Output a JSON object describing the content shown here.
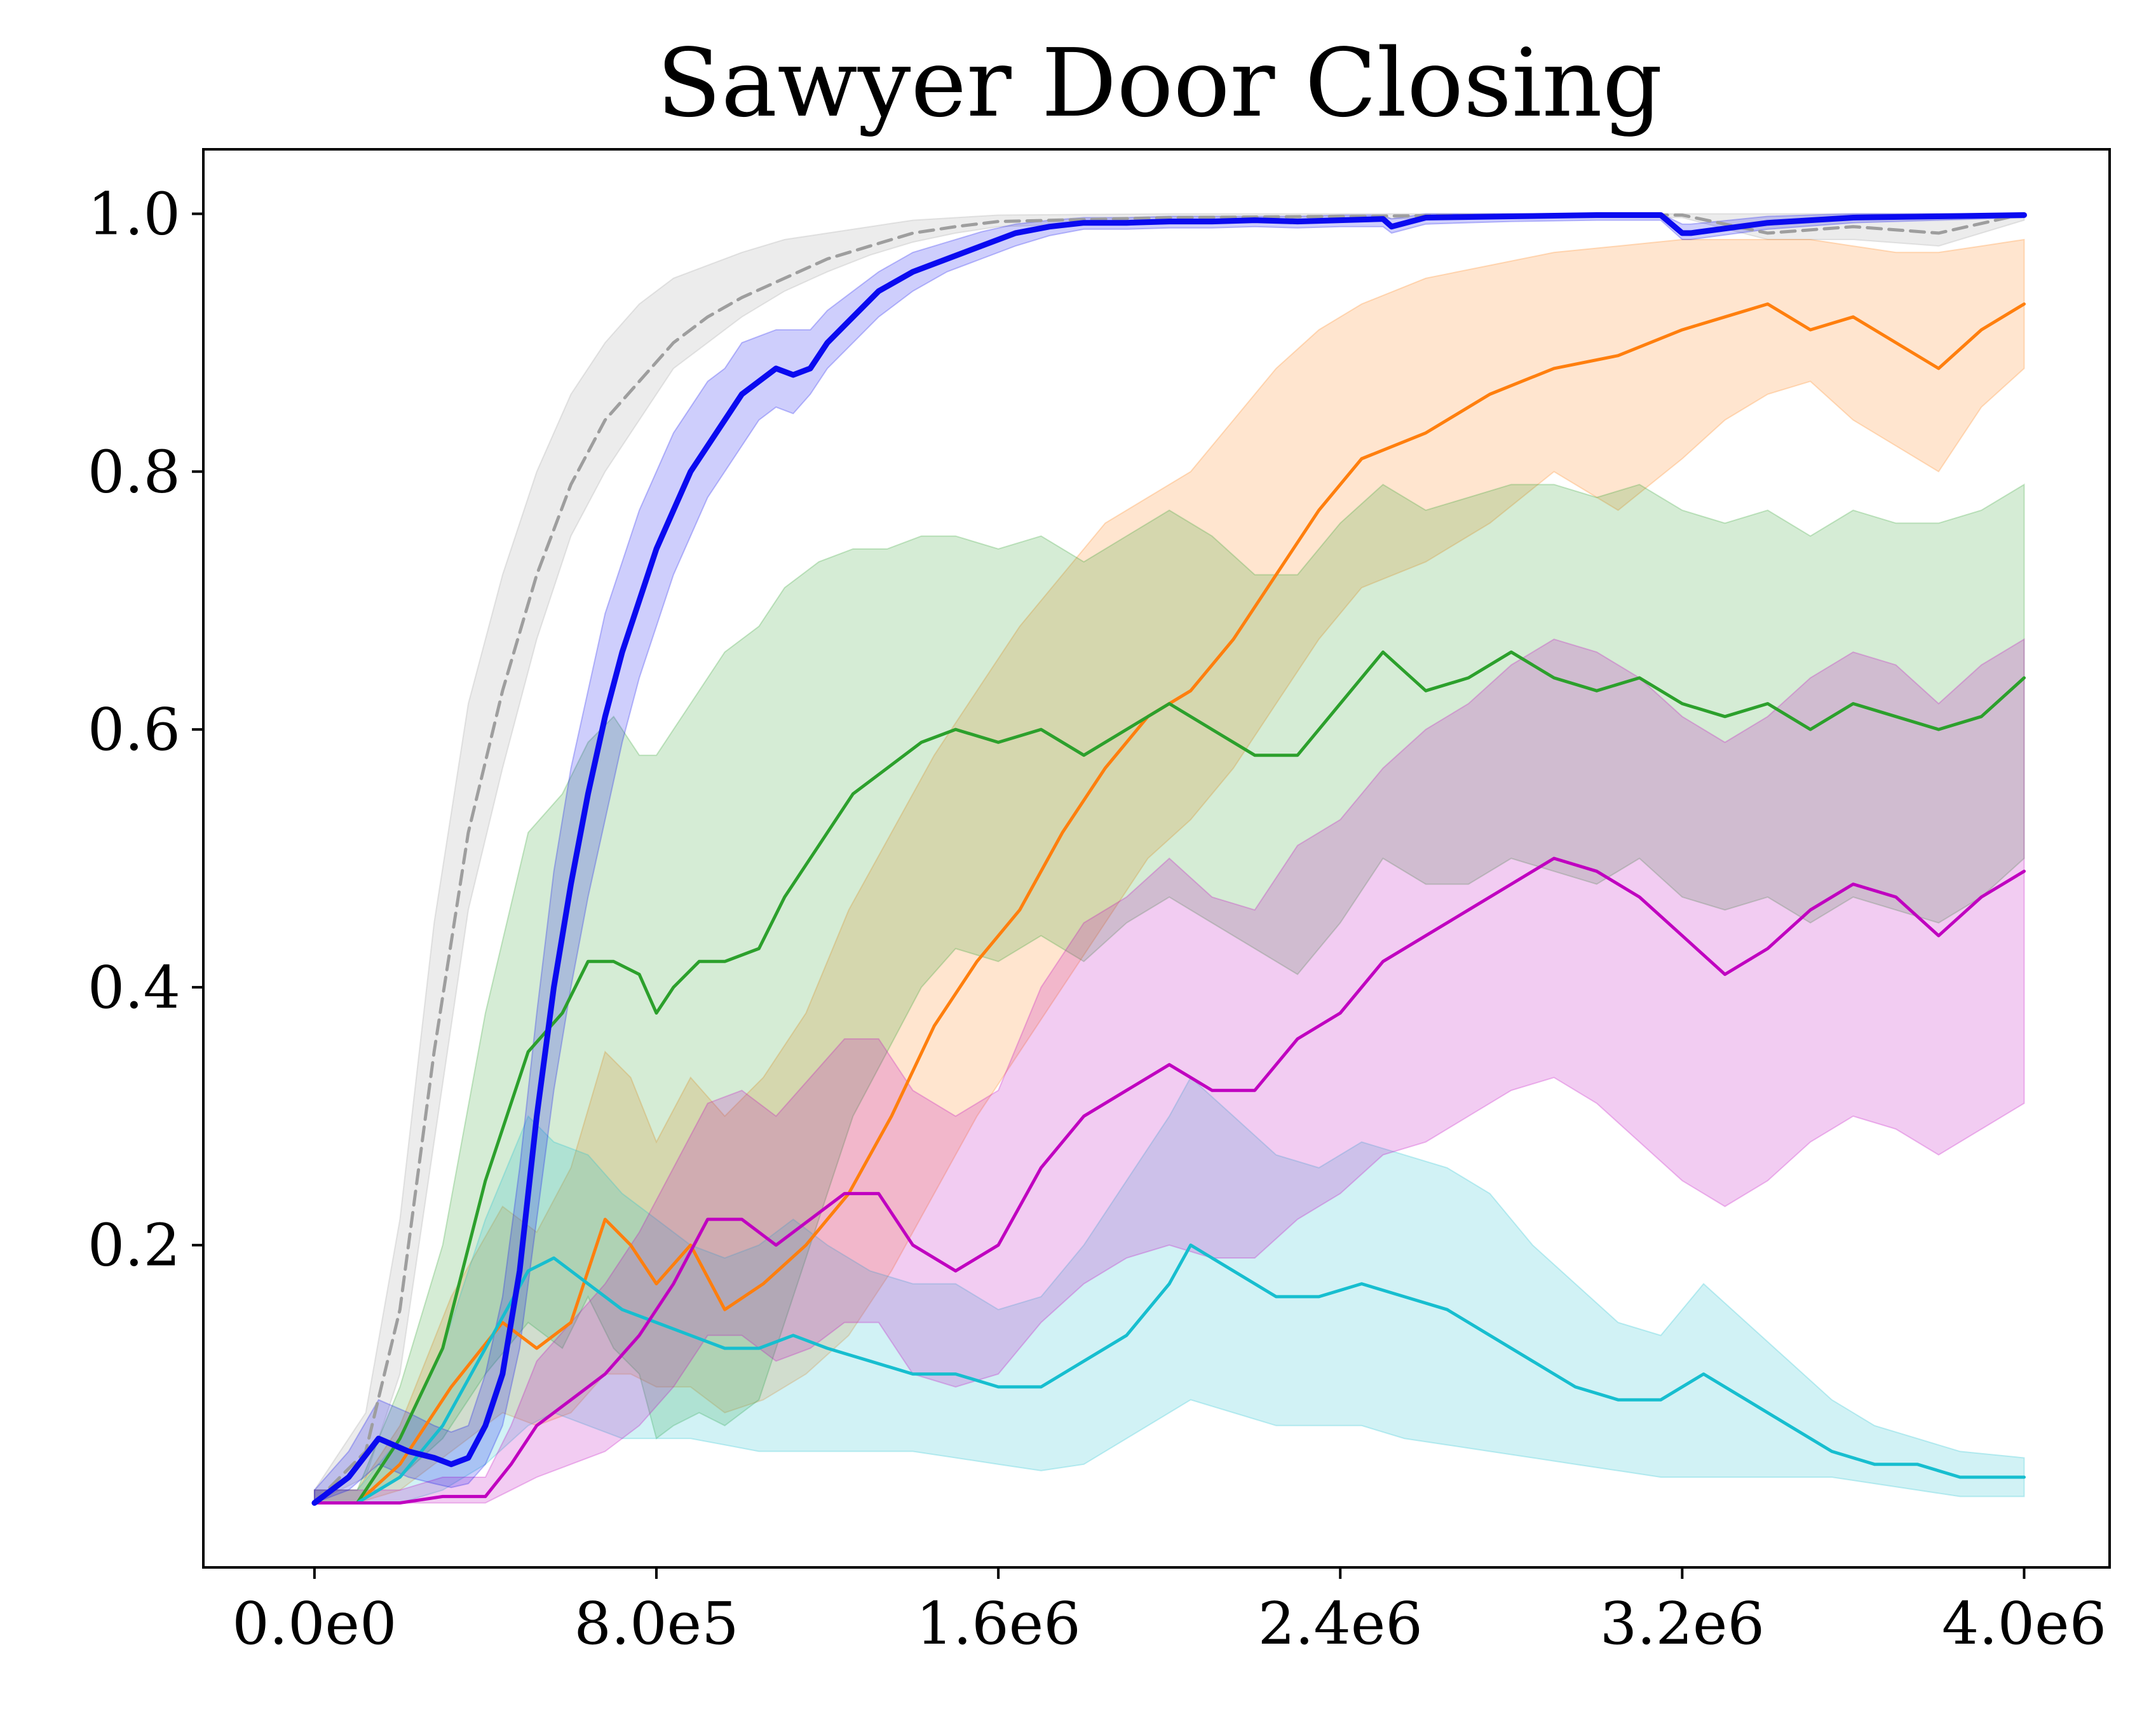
{
  "chart_data": {
    "type": "line",
    "title": "Sawyer Door Closing",
    "xlabel": "",
    "ylabel": "",
    "xlim": [
      -260000,
      4200000
    ],
    "ylim": [
      -0.05,
      1.05
    ],
    "xticks": [
      0,
      800000,
      1600000,
      2400000,
      3200000,
      4000000
    ],
    "xtick_labels": [
      "0.0e0",
      "8.0e5",
      "1.6e6",
      "2.4e6",
      "3.2e6",
      "4.0e6"
    ],
    "yticks": [
      0.2,
      0.4,
      0.6,
      0.8,
      1.0
    ],
    "ytick_labels": [
      "0.2",
      "0.4",
      "0.6",
      "0.8",
      "1.0"
    ],
    "grid": false,
    "legend": "none",
    "series": [
      {
        "color": "#9e9e9e",
        "dashed": true,
        "linewidth": 5,
        "x": [
          0,
          120000,
          200000,
          280000,
          360000,
          440000,
          520000,
          600000,
          680000,
          760000,
          840000,
          920000,
          1000000,
          1100000,
          1200000,
          1300000,
          1400000,
          1500000,
          1600000,
          2000000,
          2400000,
          2800000,
          3200000,
          3400000,
          3600000,
          3800000,
          4000000
        ],
        "y": [
          0.0,
          0.04,
          0.15,
          0.35,
          0.52,
          0.63,
          0.72,
          0.79,
          0.84,
          0.87,
          0.9,
          0.92,
          0.935,
          0.95,
          0.965,
          0.975,
          0.985,
          0.99,
          0.994,
          0.997,
          0.998,
          0.999,
          0.999,
          0.985,
          0.99,
          0.985,
          1.0
        ],
        "lower": [
          0.0,
          0.02,
          0.1,
          0.28,
          0.46,
          0.57,
          0.67,
          0.75,
          0.8,
          0.84,
          0.88,
          0.9,
          0.92,
          0.94,
          0.955,
          0.968,
          0.978,
          0.985,
          0.99,
          0.994,
          0.996,
          0.997,
          0.997,
          0.98,
          0.98,
          0.975,
          0.995
        ],
        "upper": [
          0.01,
          0.07,
          0.22,
          0.45,
          0.62,
          0.72,
          0.8,
          0.86,
          0.9,
          0.93,
          0.95,
          0.96,
          0.97,
          0.98,
          0.985,
          0.99,
          0.995,
          0.997,
          0.999,
          1.0,
          1.0,
          1.0,
          1.0,
          1.0,
          1.0,
          1.0,
          1.0
        ]
      },
      {
        "color": "#ff7f0e",
        "dashed": false,
        "linewidth": 5,
        "x": [
          0,
          100000,
          200000,
          320000,
          440000,
          520000,
          600000,
          680000,
          740000,
          800000,
          880000,
          960000,
          1050000,
          1150000,
          1250000,
          1350000,
          1450000,
          1550000,
          1650000,
          1750000,
          1850000,
          1950000,
          2050000,
          2150000,
          2250000,
          2350000,
          2450000,
          2600000,
          2750000,
          2900000,
          3050000,
          3200000,
          3300000,
          3400000,
          3500000,
          3600000,
          3700000,
          3800000,
          3900000,
          4000000
        ],
        "y": [
          0.0,
          0.0,
          0.03,
          0.09,
          0.14,
          0.12,
          0.14,
          0.22,
          0.2,
          0.17,
          0.2,
          0.15,
          0.17,
          0.2,
          0.24,
          0.3,
          0.37,
          0.42,
          0.46,
          0.52,
          0.57,
          0.61,
          0.63,
          0.67,
          0.72,
          0.77,
          0.81,
          0.83,
          0.86,
          0.88,
          0.89,
          0.91,
          0.92,
          0.93,
          0.91,
          0.92,
          0.9,
          0.88,
          0.91,
          0.93
        ],
        "lower": [
          0.0,
          0.0,
          0.01,
          0.04,
          0.07,
          0.06,
          0.07,
          0.1,
          0.1,
          0.09,
          0.09,
          0.07,
          0.08,
          0.1,
          0.13,
          0.18,
          0.24,
          0.3,
          0.35,
          0.4,
          0.45,
          0.5,
          0.53,
          0.57,
          0.62,
          0.67,
          0.71,
          0.73,
          0.76,
          0.8,
          0.77,
          0.81,
          0.84,
          0.86,
          0.87,
          0.84,
          0.82,
          0.8,
          0.85,
          0.88
        ],
        "upper": [
          0.01,
          0.01,
          0.06,
          0.16,
          0.23,
          0.21,
          0.26,
          0.35,
          0.33,
          0.28,
          0.33,
          0.3,
          0.33,
          0.38,
          0.46,
          0.52,
          0.58,
          0.63,
          0.68,
          0.72,
          0.76,
          0.78,
          0.8,
          0.84,
          0.88,
          0.91,
          0.93,
          0.95,
          0.96,
          0.97,
          0.975,
          0.98,
          0.98,
          0.98,
          0.98,
          0.975,
          0.97,
          0.97,
          0.975,
          0.98
        ]
      },
      {
        "color": "#2ca02c",
        "dashed": false,
        "linewidth": 5,
        "x": [
          0,
          100000,
          200000,
          300000,
          400000,
          500000,
          580000,
          640000,
          700000,
          760000,
          800000,
          840000,
          900000,
          960000,
          1040000,
          1100000,
          1180000,
          1260000,
          1340000,
          1420000,
          1500000,
          1600000,
          1700000,
          1800000,
          1900000,
          2000000,
          2100000,
          2200000,
          2300000,
          2400000,
          2500000,
          2600000,
          2700000,
          2800000,
          2900000,
          3000000,
          3100000,
          3200000,
          3300000,
          3400000,
          3500000,
          3600000,
          3700000,
          3800000,
          3900000,
          4000000
        ],
        "y": [
          0.0,
          0.0,
          0.05,
          0.12,
          0.25,
          0.35,
          0.38,
          0.42,
          0.42,
          0.41,
          0.38,
          0.4,
          0.42,
          0.42,
          0.43,
          0.47,
          0.51,
          0.55,
          0.57,
          0.59,
          0.6,
          0.59,
          0.6,
          0.58,
          0.6,
          0.62,
          0.6,
          0.58,
          0.58,
          0.62,
          0.66,
          0.63,
          0.64,
          0.66,
          0.64,
          0.63,
          0.64,
          0.62,
          0.61,
          0.62,
          0.6,
          0.62,
          0.61,
          0.6,
          0.61,
          0.64
        ],
        "lower": [
          0.0,
          0.0,
          0.02,
          0.05,
          0.1,
          0.14,
          0.12,
          0.16,
          0.12,
          0.1,
          0.05,
          0.06,
          0.07,
          0.06,
          0.08,
          0.14,
          0.22,
          0.3,
          0.35,
          0.4,
          0.43,
          0.42,
          0.44,
          0.42,
          0.45,
          0.47,
          0.45,
          0.43,
          0.41,
          0.45,
          0.5,
          0.48,
          0.48,
          0.5,
          0.49,
          0.48,
          0.5,
          0.47,
          0.46,
          0.47,
          0.45,
          0.47,
          0.46,
          0.45,
          0.47,
          0.5
        ],
        "upper": [
          0.01,
          0.01,
          0.09,
          0.2,
          0.38,
          0.52,
          0.55,
          0.59,
          0.61,
          0.58,
          0.58,
          0.6,
          0.63,
          0.66,
          0.68,
          0.71,
          0.73,
          0.74,
          0.74,
          0.75,
          0.75,
          0.74,
          0.75,
          0.73,
          0.75,
          0.77,
          0.75,
          0.72,
          0.72,
          0.76,
          0.79,
          0.77,
          0.78,
          0.79,
          0.79,
          0.78,
          0.79,
          0.77,
          0.76,
          0.77,
          0.75,
          0.77,
          0.76,
          0.76,
          0.77,
          0.79
        ]
      },
      {
        "color": "#17becf",
        "dashed": false,
        "linewidth": 5,
        "x": [
          0,
          100000,
          200000,
          300000,
          400000,
          500000,
          560000,
          640000,
          720000,
          800000,
          880000,
          960000,
          1040000,
          1120000,
          1200000,
          1300000,
          1400000,
          1500000,
          1600000,
          1700000,
          1800000,
          1900000,
          2000000,
          2050000,
          2150000,
          2250000,
          2350000,
          2450000,
          2550000,
          2650000,
          2750000,
          2850000,
          2950000,
          3050000,
          3150000,
          3250000,
          3350000,
          3450000,
          3550000,
          3650000,
          3750000,
          3850000,
          4000000
        ],
        "y": [
          0.0,
          0.0,
          0.02,
          0.06,
          0.12,
          0.18,
          0.19,
          0.17,
          0.15,
          0.14,
          0.13,
          0.12,
          0.12,
          0.13,
          0.12,
          0.11,
          0.1,
          0.1,
          0.09,
          0.09,
          0.11,
          0.13,
          0.17,
          0.2,
          0.18,
          0.16,
          0.16,
          0.17,
          0.16,
          0.15,
          0.13,
          0.11,
          0.09,
          0.08,
          0.08,
          0.1,
          0.08,
          0.06,
          0.04,
          0.03,
          0.03,
          0.02,
          0.02
        ],
        "lower": [
          0.0,
          0.0,
          0.0,
          0.01,
          0.03,
          0.06,
          0.07,
          0.06,
          0.05,
          0.05,
          0.05,
          0.045,
          0.04,
          0.04,
          0.04,
          0.04,
          0.04,
          0.035,
          0.03,
          0.025,
          0.03,
          0.05,
          0.07,
          0.08,
          0.07,
          0.06,
          0.06,
          0.06,
          0.05,
          0.045,
          0.04,
          0.035,
          0.03,
          0.025,
          0.02,
          0.02,
          0.02,
          0.02,
          0.02,
          0.015,
          0.01,
          0.005,
          0.005
        ],
        "upper": [
          0.01,
          0.01,
          0.05,
          0.12,
          0.22,
          0.3,
          0.28,
          0.27,
          0.24,
          0.22,
          0.2,
          0.19,
          0.2,
          0.22,
          0.2,
          0.18,
          0.17,
          0.17,
          0.15,
          0.16,
          0.2,
          0.25,
          0.3,
          0.33,
          0.3,
          0.27,
          0.26,
          0.28,
          0.27,
          0.26,
          0.24,
          0.2,
          0.17,
          0.14,
          0.13,
          0.17,
          0.14,
          0.11,
          0.08,
          0.06,
          0.05,
          0.04,
          0.035
        ]
      },
      {
        "color": "#c000c0",
        "dashed": false,
        "linewidth": 5,
        "x": [
          0,
          100000,
          200000,
          300000,
          400000,
          460000,
          520000,
          600000,
          680000,
          760000,
          840000,
          920000,
          1000000,
          1080000,
          1160000,
          1240000,
          1320000,
          1400000,
          1500000,
          1600000,
          1700000,
          1800000,
          1900000,
          2000000,
          2100000,
          2200000,
          2300000,
          2400000,
          2500000,
          2600000,
          2700000,
          2800000,
          2900000,
          3000000,
          3100000,
          3200000,
          3300000,
          3400000,
          3500000,
          3600000,
          3700000,
          3800000,
          3900000,
          4000000
        ],
        "y": [
          0.0,
          0.0,
          0.0,
          0.005,
          0.005,
          0.03,
          0.06,
          0.08,
          0.1,
          0.13,
          0.17,
          0.22,
          0.22,
          0.2,
          0.22,
          0.24,
          0.24,
          0.2,
          0.18,
          0.2,
          0.26,
          0.3,
          0.32,
          0.34,
          0.32,
          0.32,
          0.36,
          0.38,
          0.42,
          0.44,
          0.46,
          0.48,
          0.5,
          0.49,
          0.47,
          0.44,
          0.41,
          0.43,
          0.46,
          0.48,
          0.47,
          0.44,
          0.47,
          0.49
        ],
        "lower": [
          0.0,
          0.0,
          0.0,
          0.0,
          0.0,
          0.01,
          0.02,
          0.03,
          0.04,
          0.06,
          0.09,
          0.13,
          0.13,
          0.11,
          0.12,
          0.14,
          0.14,
          0.1,
          0.09,
          0.1,
          0.14,
          0.17,
          0.19,
          0.2,
          0.19,
          0.19,
          0.22,
          0.24,
          0.27,
          0.28,
          0.3,
          0.32,
          0.33,
          0.31,
          0.28,
          0.25,
          0.23,
          0.25,
          0.28,
          0.3,
          0.29,
          0.27,
          0.29,
          0.31
        ],
        "upper": [
          0.01,
          0.01,
          0.01,
          0.02,
          0.02,
          0.06,
          0.11,
          0.14,
          0.17,
          0.21,
          0.26,
          0.31,
          0.32,
          0.3,
          0.33,
          0.36,
          0.36,
          0.32,
          0.3,
          0.32,
          0.4,
          0.45,
          0.47,
          0.5,
          0.47,
          0.46,
          0.51,
          0.53,
          0.57,
          0.6,
          0.62,
          0.65,
          0.67,
          0.66,
          0.64,
          0.61,
          0.59,
          0.61,
          0.64,
          0.66,
          0.65,
          0.62,
          0.65,
          0.67
        ]
      },
      {
        "color": "#0a0af0",
        "dashed": false,
        "linewidth": 9,
        "x": [
          0,
          80000,
          150000,
          220000,
          280000,
          320000,
          360000,
          400000,
          440000,
          480000,
          520000,
          560000,
          600000,
          640000,
          680000,
          720000,
          760000,
          800000,
          840000,
          880000,
          920000,
          960000,
          1000000,
          1040000,
          1080000,
          1120000,
          1160000,
          1200000,
          1260000,
          1320000,
          1400000,
          1480000,
          1560000,
          1640000,
          1720000,
          1800000,
          1900000,
          2000000,
          2100000,
          2200000,
          2300000,
          2400000,
          2500000,
          2520000,
          2600000,
          2800000,
          3000000,
          3150000,
          3200000,
          3220000,
          3400000,
          3600000,
          3800000,
          4000000
        ],
        "y": [
          0.0,
          0.02,
          0.05,
          0.04,
          0.035,
          0.03,
          0.035,
          0.06,
          0.1,
          0.18,
          0.3,
          0.4,
          0.48,
          0.55,
          0.61,
          0.66,
          0.7,
          0.74,
          0.77,
          0.8,
          0.82,
          0.84,
          0.86,
          0.87,
          0.88,
          0.875,
          0.88,
          0.9,
          0.92,
          0.94,
          0.955,
          0.965,
          0.975,
          0.985,
          0.99,
          0.993,
          0.993,
          0.994,
          0.994,
          0.995,
          0.994,
          0.995,
          0.996,
          0.99,
          0.997,
          0.998,
          0.999,
          0.999,
          0.985,
          0.985,
          0.993,
          0.997,
          0.998,
          0.999
        ],
        "lower": [
          0.0,
          0.01,
          0.03,
          0.02,
          0.015,
          0.012,
          0.015,
          0.03,
          0.06,
          0.12,
          0.22,
          0.32,
          0.4,
          0.47,
          0.53,
          0.59,
          0.64,
          0.68,
          0.72,
          0.75,
          0.78,
          0.8,
          0.82,
          0.84,
          0.85,
          0.845,
          0.86,
          0.88,
          0.9,
          0.92,
          0.94,
          0.955,
          0.965,
          0.975,
          0.983,
          0.988,
          0.988,
          0.989,
          0.989,
          0.99,
          0.989,
          0.99,
          0.99,
          0.985,
          0.992,
          0.994,
          0.995,
          0.995,
          0.98,
          0.98,
          0.988,
          0.993,
          0.995,
          0.997
        ],
        "upper": [
          0.01,
          0.04,
          0.08,
          0.07,
          0.06,
          0.055,
          0.06,
          0.1,
          0.16,
          0.26,
          0.38,
          0.49,
          0.57,
          0.63,
          0.69,
          0.73,
          0.77,
          0.8,
          0.83,
          0.85,
          0.87,
          0.88,
          0.9,
          0.905,
          0.91,
          0.91,
          0.91,
          0.925,
          0.94,
          0.955,
          0.97,
          0.978,
          0.986,
          0.992,
          0.995,
          0.997,
          0.997,
          0.998,
          0.998,
          0.998,
          0.998,
          0.999,
          0.999,
          0.996,
          1.0,
          1.0,
          1.0,
          1.0,
          0.992,
          0.992,
          0.998,
          1.0,
          1.0,
          1.0
        ]
      }
    ]
  }
}
